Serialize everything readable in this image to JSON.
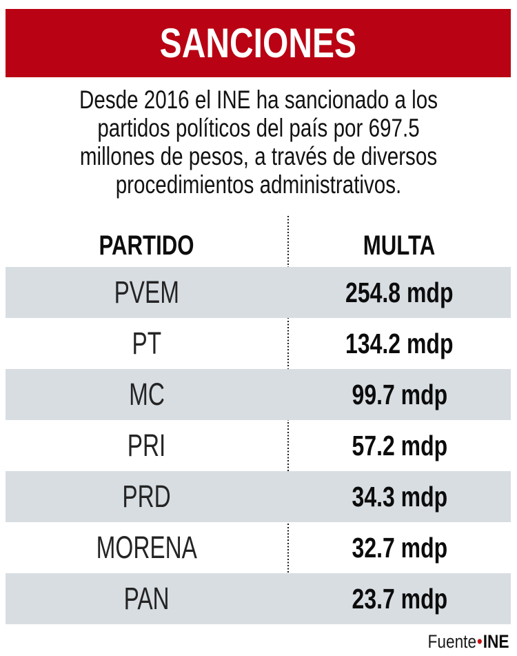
{
  "title": "SANCIONES",
  "intro": {
    "lines": [
      "Desde 2016 el INE ha sancionado a los",
      "partidos políticos del país por 697.5",
      "millones de pesos, a través de diversos",
      "procedimientos administrativos."
    ]
  },
  "table": {
    "columns": {
      "party": "PARTIDO",
      "fine": "MULTA"
    },
    "rows": [
      {
        "party": "PVEM",
        "fine": "254.8 mdp"
      },
      {
        "party": "PT",
        "fine": "134.2 mdp"
      },
      {
        "party": "MC",
        "fine": "99.7 mdp"
      },
      {
        "party": "PRI",
        "fine": "57.2 mdp"
      },
      {
        "party": "PRD",
        "fine": "34.3 mdp"
      },
      {
        "party": "MORENA",
        "fine": "32.7 mdp"
      },
      {
        "party": "PAN",
        "fine": "23.7 mdp"
      }
    ]
  },
  "footer": {
    "source_label": "Fuente",
    "separator": "•",
    "source_value": "INE"
  },
  "colors": {
    "banner_red": "#b90213",
    "row_stripe_gray": "#d8dde2",
    "text_black": "#121212",
    "source_dot_red": "#c40f15"
  },
  "chart_data": {
    "type": "table",
    "title": "SANCIONES",
    "subtitle": "Desde 2016 el INE ha sancionado a los partidos políticos del país por 697.5 millones de pesos, a través de diversos procedimientos administrativos.",
    "columns": [
      "PARTIDO",
      "MULTA"
    ],
    "categories": [
      "PVEM",
      "PT",
      "MC",
      "PRI",
      "PRD",
      "MORENA",
      "PAN"
    ],
    "values": [
      254.8,
      134.2,
      99.7,
      57.2,
      34.3,
      32.7,
      23.7
    ],
    "unit": "mdp",
    "total": 697.5,
    "source": "INE",
    "layout": {
      "striped_rows": [
        0,
        2,
        4,
        6
      ],
      "column_divider": "dotted"
    }
  }
}
